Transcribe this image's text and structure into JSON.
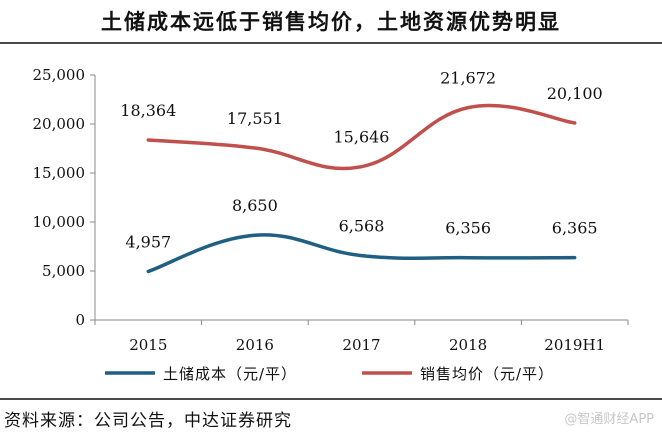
{
  "chart_data": {
    "type": "line",
    "title": "土储成本远低于销售均价，土地资源优势明显",
    "categories": [
      "2015",
      "2016",
      "2017",
      "2018",
      "2019H1"
    ],
    "series": [
      {
        "name": "土储成本（元/平）",
        "color": "#1f5f82",
        "values": [
          4957,
          8650,
          6568,
          6356,
          6365
        ],
        "labels": [
          "4,957",
          "8,650",
          "6,568",
          "6,356",
          "6,365"
        ]
      },
      {
        "name": "销售均价（元/平）",
        "color": "#c0504d",
        "values": [
          18364,
          17551,
          15646,
          21672,
          20100
        ],
        "labels": [
          "18,364",
          "17,551",
          "15,646",
          "21,672",
          "20,100"
        ]
      }
    ],
    "yticks": [
      "0",
      "5,000",
      "10,000",
      "15,000",
      "20,000",
      "25,000"
    ],
    "ylim": [
      0,
      25000
    ],
    "legend_position": "bottom",
    "grid": false
  },
  "footer": {
    "source": "资料来源：公司公告，中达证券研究",
    "watermark": "@智通财经APP"
  }
}
